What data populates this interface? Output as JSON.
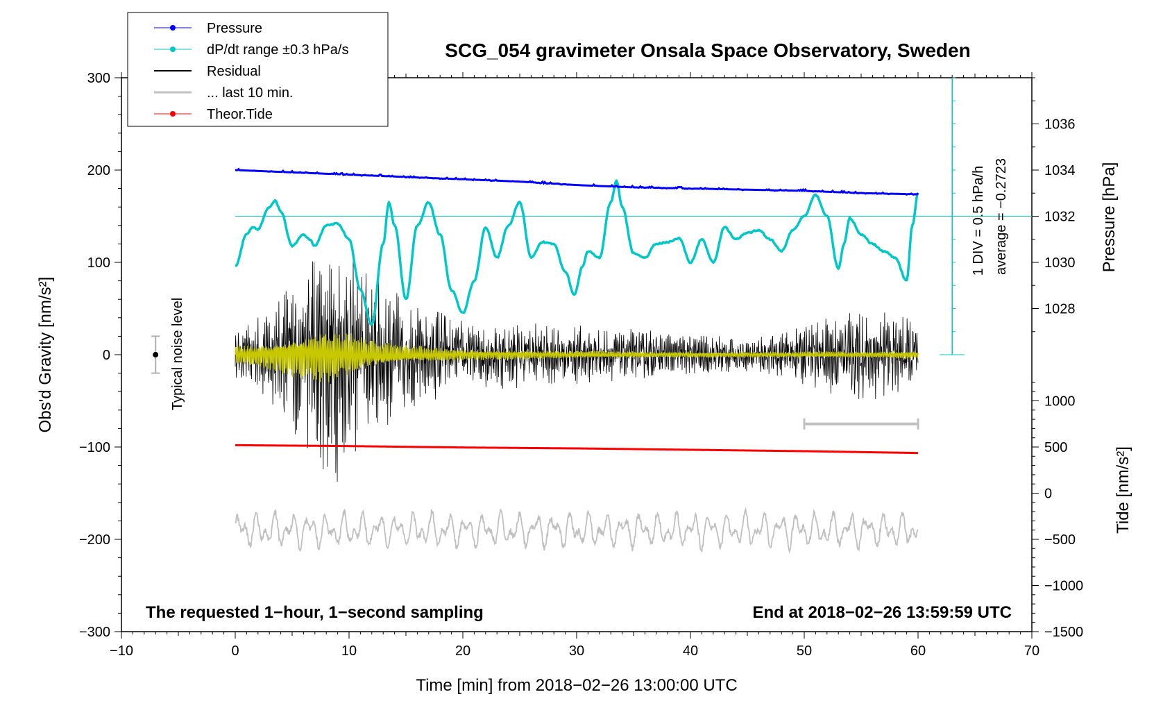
{
  "chart_data": {
    "type": "line",
    "title": "SCG_054 gravimeter Onsala Space Observatory, Sweden",
    "xlabel": "Time [min] from 2018−02−26 13:00:00 UTC",
    "xlim": [
      -10,
      70
    ],
    "x_ticks": [
      -10,
      0,
      10,
      20,
      30,
      40,
      50,
      60,
      70
    ],
    "x_tick_labels": [
      "−10",
      "0",
      "10",
      "20",
      "30",
      "40",
      "50",
      "60",
      "70"
    ],
    "left_axis": {
      "label": "Obs'd Gravity [nm/s²]",
      "lim": [
        -300,
        300
      ],
      "ticks": [
        -300,
        -200,
        -100,
        0,
        100,
        200,
        300
      ],
      "tick_labels": [
        "−300",
        "−200",
        "−100",
        "0",
        "100",
        "200",
        "300"
      ]
    },
    "pressure_axis": {
      "label": "Pressure [hPa]",
      "ticks": [
        1028,
        1030,
        1032,
        1034,
        1036
      ],
      "tick_labels": [
        "1028",
        "1030",
        "1032",
        "1034",
        "1036"
      ],
      "gravity_at_1028": 50,
      "gravity_per_hpa": 25
    },
    "tide_axis": {
      "label": "Tide [nm/s²]",
      "ticks": [
        -1500,
        -1000,
        -500,
        0,
        500,
        1000
      ],
      "tick_labels": [
        "−1500",
        "−1000",
        "−500",
        "0",
        "500",
        "1000"
      ],
      "gravity_at_0": -150,
      "gravity_per_unit": 0.1
    },
    "legend": {
      "position": "top-left",
      "entries": [
        {
          "label": "Pressure",
          "color": "#0000ff",
          "marker": true
        },
        {
          "label": "dP/dt range ±0.3 hPa/s",
          "color": "#00c8c8",
          "marker": true
        },
        {
          "label": "Residual",
          "color": "#000000",
          "marker": false
        },
        {
          "label": "... last 10 min.",
          "color": "#c0c0c0",
          "marker": false
        },
        {
          "label": "Theor.Tide",
          "color": "#ff0000",
          "marker": true
        }
      ]
    },
    "series": [
      {
        "name": "Pressure",
        "unit": "hPa",
        "color": "#0000ff",
        "x": [
          0,
          5,
          10,
          15,
          20,
          25,
          30,
          35,
          40,
          45,
          50,
          55,
          60
        ],
        "values": [
          1034.0,
          1033.9,
          1033.8,
          1033.7,
          1033.6,
          1033.5,
          1033.35,
          1033.25,
          1033.2,
          1033.15,
          1033.1,
          1033.0,
          1032.95
        ]
      },
      {
        "name": "dP/dt",
        "unit": "gravity-axis units",
        "color": "#00c8c8",
        "x": [
          0,
          1,
          1.5,
          2,
          3,
          3.5,
          4,
          5,
          6,
          6.5,
          7,
          8,
          9,
          10,
          11,
          12,
          13,
          13.5,
          14,
          15,
          16,
          17,
          18,
          19,
          20,
          21,
          22,
          23,
          24,
          25,
          26,
          27,
          28,
          29,
          29.8,
          30.5,
          31,
          32,
          33,
          33.5,
          34,
          35,
          36,
          37,
          38,
          39,
          40,
          41,
          42,
          43,
          44,
          45,
          46,
          47,
          48,
          49,
          50,
          51,
          52,
          53,
          53.5,
          54,
          55,
          56,
          57,
          58,
          59,
          59.5,
          60
        ],
        "values": [
          96,
          130,
          138,
          136,
          160,
          167,
          155,
          118,
          130,
          125,
          118,
          140,
          142,
          125,
          70,
          32,
          120,
          165,
          140,
          60,
          140,
          165,
          130,
          70,
          45,
          80,
          138,
          105,
          140,
          165,
          105,
          122,
          120,
          90,
          65,
          95,
          112,
          105,
          165,
          188,
          160,
          110,
          105,
          120,
          122,
          126,
          100,
          125,
          100,
          138,
          125,
          132,
          135,
          125,
          112,
          135,
          150,
          173,
          150,
          93,
          120,
          148,
          130,
          120,
          112,
          105,
          80,
          140,
          175
        ]
      },
      {
        "name": "Residual",
        "unit": "nm/s²",
        "color": "#000000",
        "style": "high-frequency noise",
        "amplitude_envelope_x": [
          0,
          3,
          5,
          7,
          8,
          9,
          10,
          12,
          14,
          16,
          18,
          20,
          25,
          30,
          35,
          40,
          45,
          50,
          53,
          55,
          58,
          60
        ],
        "amplitude_envelope": [
          20,
          40,
          70,
          90,
          105,
          110,
          90,
          70,
          55,
          45,
          40,
          30,
          28,
          25,
          22,
          18,
          15,
          25,
          35,
          40,
          35,
          30
        ]
      },
      {
        "name": "Residual filtered",
        "unit": "nm/s²",
        "color": "#c8c800",
        "style": "noise",
        "amplitude_envelope_x": [
          0,
          3,
          5,
          8,
          10,
          12,
          15,
          20,
          30,
          40,
          50,
          60
        ],
        "amplitude_envelope": [
          10,
          15,
          22,
          30,
          25,
          15,
          10,
          6,
          4,
          3,
          3,
          4
        ]
      },
      {
        "name": "Theor.Tide",
        "unit": "nm/s²",
        "color": "#ff0000",
        "x": [
          0,
          10,
          20,
          30,
          40,
          50,
          60
        ],
        "values": [
          520,
          510,
          495,
          485,
          470,
          455,
          435
        ]
      },
      {
        "name": "... last 10 min.",
        "unit": "gravity-axis units",
        "color": "#c0c0c0",
        "style": "oscillation around baseline",
        "baseline": -190,
        "amplitude": 18
      }
    ],
    "noise_bar": {
      "label": "Typical noise level",
      "x": -7,
      "center": 0,
      "half_range": 20
    },
    "last10_bar": {
      "x_start": 50,
      "x_end": 60,
      "gravity_level": -75
    },
    "pressure_scale": {
      "text_line1": "1 DIV = 0.5 hPa/h",
      "text_line2": "average = −0.2723",
      "x": 63,
      "reference_level": 150
    },
    "annotations": {
      "bottom_left": "The requested 1−hour, 1−second sampling",
      "bottom_right": "End at 2018−02−26 13:59:59 UTC"
    }
  }
}
